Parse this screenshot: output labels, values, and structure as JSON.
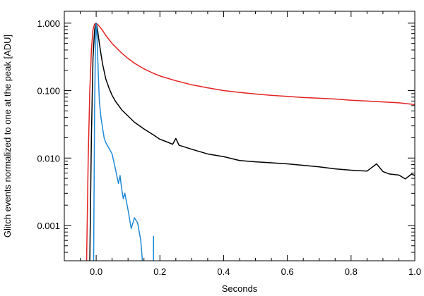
{
  "chart_data": {
    "type": "line",
    "title": "",
    "xlabel": "Seconds",
    "ylabel": "Glitch events normalized to one at the peak [ADU]",
    "xlim": [
      -0.1,
      1.0
    ],
    "ylim": [
      0.0003,
      1.5
    ],
    "y_scale": "log",
    "grid": false,
    "legend": "none",
    "x_ticks": [
      {
        "value": 0.0,
        "label": "0.0"
      },
      {
        "value": 0.2,
        "label": "0.2"
      },
      {
        "value": 0.4,
        "label": "0.4"
      },
      {
        "value": 0.6,
        "label": "0.6"
      },
      {
        "value": 0.8,
        "label": "0.8"
      },
      {
        "value": 1.0,
        "label": "1.0"
      }
    ],
    "y_ticks": [
      {
        "value": 1.0,
        "label": "1.000"
      },
      {
        "value": 0.1,
        "label": "0.100"
      },
      {
        "value": 0.01,
        "label": "0.010"
      },
      {
        "value": 0.001,
        "label": "0.001"
      }
    ],
    "series": [
      {
        "color": "#e32222",
        "x": [
          -0.03,
          -0.025,
          -0.02,
          -0.015,
          -0.01,
          -0.005,
          0.0,
          0.01,
          0.02,
          0.03,
          0.05,
          0.08,
          0.1,
          0.12,
          0.15,
          0.18,
          0.2,
          0.25,
          0.3,
          0.35,
          0.4,
          0.45,
          0.5,
          0.55,
          0.6,
          0.65,
          0.7,
          0.75,
          0.8,
          0.85,
          0.9,
          0.95,
          1.0
        ],
        "y": [
          0.0003,
          0.01,
          0.1,
          0.4,
          0.8,
          0.97,
          1.0,
          0.9,
          0.78,
          0.66,
          0.5,
          0.36,
          0.3,
          0.255,
          0.21,
          0.18,
          0.165,
          0.14,
          0.122,
          0.11,
          0.1,
          0.094,
          0.089,
          0.085,
          0.082,
          0.079,
          0.077,
          0.075,
          0.072,
          0.07,
          0.068,
          0.066,
          0.062
        ]
      },
      {
        "color": "#000000",
        "x": [
          -0.02,
          -0.015,
          -0.01,
          -0.005,
          0.0,
          0.005,
          0.01,
          0.015,
          0.02,
          0.03,
          0.04,
          0.05,
          0.06,
          0.08,
          0.1,
          0.12,
          0.15,
          0.18,
          0.2,
          0.22,
          0.24,
          0.25,
          0.26,
          0.3,
          0.35,
          0.4,
          0.45,
          0.5,
          0.55,
          0.6,
          0.65,
          0.7,
          0.75,
          0.8,
          0.85,
          0.88,
          0.9,
          0.92,
          0.95,
          0.97,
          0.99,
          1.0
        ],
        "y": [
          0.0003,
          0.02,
          0.3,
          0.8,
          1.0,
          0.75,
          0.5,
          0.35,
          0.25,
          0.15,
          0.11,
          0.085,
          0.07,
          0.052,
          0.042,
          0.034,
          0.027,
          0.022,
          0.019,
          0.0175,
          0.016,
          0.0195,
          0.0155,
          0.0135,
          0.0115,
          0.0105,
          0.0092,
          0.0088,
          0.0085,
          0.0082,
          0.0078,
          0.0074,
          0.0069,
          0.0066,
          0.0064,
          0.0082,
          0.0063,
          0.0058,
          0.0056,
          0.0049,
          0.0058,
          0.0055
        ]
      },
      {
        "color": "#1f8ad6",
        "x": [
          -0.008,
          -0.005,
          -0.002,
          0.0,
          0.002,
          0.005,
          0.008,
          0.01,
          0.015,
          0.02,
          0.025,
          0.03,
          0.04,
          0.05,
          0.06,
          0.07,
          0.075,
          0.08,
          0.085,
          0.09,
          0.1,
          0.11,
          0.12,
          0.13,
          0.14,
          0.145
        ],
        "y": [
          0.0003,
          0.05,
          0.6,
          1.0,
          0.7,
          0.3,
          0.12,
          0.07,
          0.04,
          0.028,
          0.02,
          0.017,
          0.014,
          0.0115,
          0.007,
          0.0042,
          0.0055,
          0.0035,
          0.0025,
          0.003,
          0.0017,
          0.0009,
          0.0013,
          0.0011,
          0.0006,
          0.0003
        ]
      },
      {
        "color": "#1f8ad6",
        "x": [
          0.18,
          0.18
        ],
        "y": [
          0.0003,
          0.0007
        ]
      }
    ]
  }
}
